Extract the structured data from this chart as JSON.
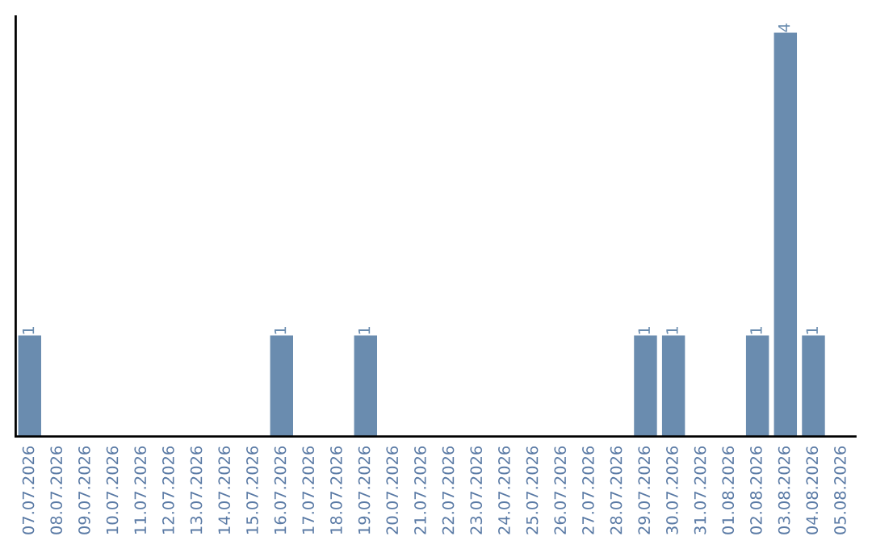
{
  "chart_data": {
    "type": "bar",
    "categories": [
      "07.07.2026",
      "08.07.2026",
      "09.07.2026",
      "10.07.2026",
      "11.07.2026",
      "12.07.2026",
      "13.07.2026",
      "14.07.2026",
      "15.07.2026",
      "16.07.2026",
      "17.07.2026",
      "18.07.2026",
      "19.07.2026",
      "20.07.2026",
      "21.07.2026",
      "22.07.2026",
      "23.07.2026",
      "24.07.2026",
      "25.07.2026",
      "26.07.2026",
      "27.07.2026",
      "28.07.2026",
      "29.07.2026",
      "30.07.2026",
      "31.07.2026",
      "01.08.2026",
      "02.08.2026",
      "03.08.2026",
      "04.08.2026",
      "05.08.2026"
    ],
    "values": [
      1,
      0,
      0,
      0,
      0,
      0,
      0,
      0,
      0,
      1,
      0,
      0,
      1,
      0,
      0,
      0,
      0,
      0,
      0,
      0,
      0,
      0,
      1,
      1,
      0,
      0,
      1,
      4,
      1,
      0
    ],
    "value_labels": [
      "1",
      null,
      null,
      null,
      null,
      null,
      null,
      null,
      null,
      "1",
      null,
      null,
      "1",
      null,
      null,
      null,
      null,
      null,
      null,
      null,
      null,
      null,
      "1",
      "1",
      null,
      null,
      "1",
      "4",
      "1",
      null
    ],
    "color": "#6a8caf",
    "tick_labels": "x",
    "grid": false
  }
}
